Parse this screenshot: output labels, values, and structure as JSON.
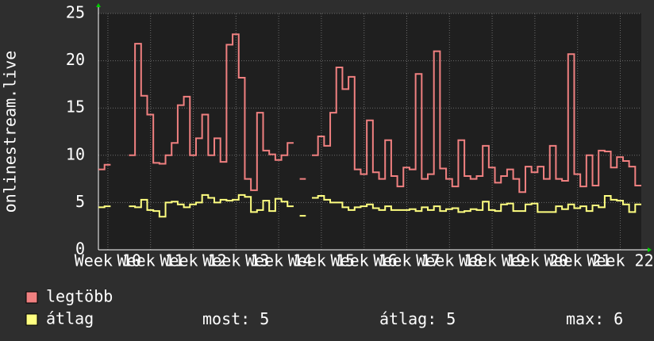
{
  "chart_data": {
    "type": "line",
    "y_label": "onlinestream.live",
    "x": [
      0,
      1,
      2,
      3,
      4,
      5,
      6,
      7,
      8,
      9,
      10,
      11,
      12,
      13,
      14,
      15,
      16,
      17,
      18,
      19,
      20,
      21,
      22,
      23,
      24,
      25,
      26,
      27,
      28,
      29,
      30,
      31,
      32,
      33,
      34,
      35,
      36,
      37,
      38,
      39,
      40,
      41,
      42,
      43,
      44,
      45,
      46,
      47,
      48,
      49,
      50,
      51,
      52,
      53,
      54,
      55,
      56,
      57,
      58,
      59,
      60,
      61,
      62,
      63,
      64,
      65,
      66,
      67,
      68,
      69,
      70,
      71,
      72,
      73,
      74,
      75,
      76,
      77,
      78,
      79,
      80,
      81,
      82,
      83,
      84,
      85,
      86,
      87,
      88
    ],
    "xlim": [
      0,
      89
    ],
    "xticks": [
      {
        "value": 1.55,
        "label": "Week 10"
      },
      {
        "value": 8.55,
        "label": "Week 11"
      },
      {
        "value": 15.55,
        "label": "Week 12"
      },
      {
        "value": 22.55,
        "label": "Week 13"
      },
      {
        "value": 29.55,
        "label": "Week 14"
      },
      {
        "value": 36.55,
        "label": "Week 15"
      },
      {
        "value": 43.55,
        "label": "Week 16"
      },
      {
        "value": 50.55,
        "label": "Week 17"
      },
      {
        "value": 57.55,
        "label": "Week 18"
      },
      {
        "value": 64.55,
        "label": "Week 19"
      },
      {
        "value": 71.55,
        "label": "Week 20"
      },
      {
        "value": 78.55,
        "label": "Week 21"
      },
      {
        "value": 85.55,
        "label": "Week 22"
      }
    ],
    "ylim": [
      0,
      25
    ],
    "yticks": [
      0,
      5,
      10,
      15,
      20,
      25
    ],
    "grid": true,
    "step": true,
    "series": [
      {
        "name": "legtöbb",
        "color": "#f08080",
        "values": [
          8.5,
          9,
          null,
          null,
          null,
          10,
          21.8,
          16.3,
          14.3,
          9.2,
          9.1,
          10,
          11.3,
          15.3,
          16.2,
          10,
          11.8,
          14.3,
          10,
          11.8,
          9.3,
          21.7,
          22.8,
          18.2,
          7.5,
          6.3,
          14.5,
          10.5,
          10.1,
          9.5,
          10,
          11.3,
          null,
          7.5,
          null,
          10,
          12,
          11,
          14.5,
          19.3,
          17,
          18.3,
          8.5,
          8,
          13.7,
          8.2,
          7.5,
          11.6,
          7.8,
          6.7,
          8.7,
          8.5,
          18.6,
          7.5,
          8,
          21,
          8.6,
          7.5,
          6.7,
          11.6,
          7.8,
          7.5,
          7.8,
          11,
          8.7,
          7.1,
          7.8,
          8.5,
          7.5,
          6.1,
          8.8,
          8.2,
          8.8,
          7.5,
          11,
          7.5,
          7.3,
          20.7,
          8,
          6.7,
          10,
          6.8,
          10.5,
          10.4,
          8.7,
          9.8,
          9.4,
          8.8,
          6.8
        ]
      },
      {
        "name": "átlag",
        "color": "#ffff80",
        "values": [
          4.5,
          4.6,
          null,
          null,
          null,
          4.6,
          4.5,
          5.3,
          4.2,
          4.1,
          3.5,
          5,
          5.1,
          4.8,
          4.5,
          4.8,
          5,
          5.8,
          5.5,
          5,
          5.3,
          5.2,
          5.3,
          5.8,
          5.6,
          4,
          4.2,
          5.2,
          4.1,
          5.4,
          5.1,
          4.6,
          null,
          3.6,
          null,
          5.5,
          5.7,
          5.3,
          5,
          5,
          4.5,
          4.2,
          4.5,
          4.6,
          4.8,
          4.4,
          4.2,
          4.6,
          4.2,
          4.2,
          4.2,
          4.3,
          4.1,
          4.5,
          4.2,
          4.6,
          4.1,
          4.3,
          4.4,
          4,
          4.1,
          4.3,
          4.2,
          5.1,
          4.2,
          4.1,
          4.8,
          4.9,
          4.1,
          4.1,
          4.8,
          4.9,
          4,
          4,
          4,
          4.6,
          4.3,
          4.8,
          4.4,
          4.6,
          4.1,
          4.7,
          4.5,
          5.7,
          5.3,
          5.2,
          4.8,
          4,
          4.8
        ]
      }
    ],
    "stats": [
      {
        "label": "most:",
        "value": 5
      },
      {
        "label": "átlag:",
        "value": 5
      },
      {
        "label": "max:",
        "value": 6
      }
    ]
  }
}
